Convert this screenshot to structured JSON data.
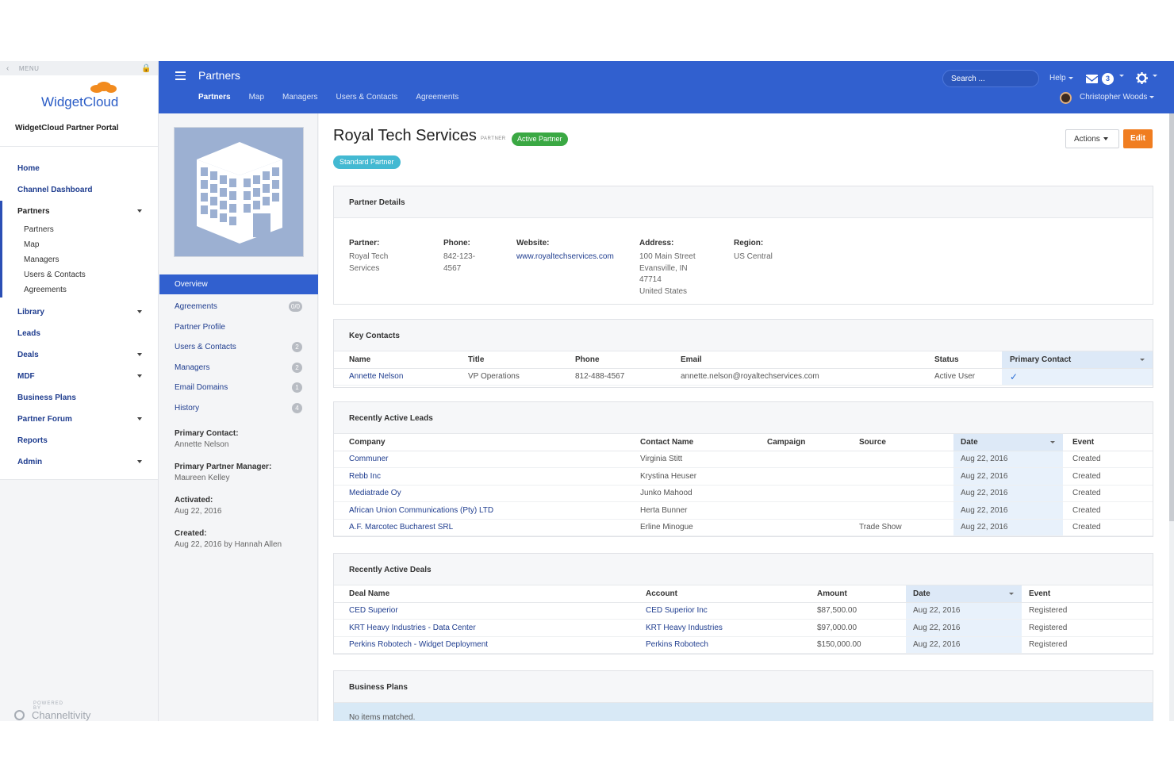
{
  "menu": {
    "label": "MENU"
  },
  "brand": {
    "logo": "WidgetCloud",
    "portal": "WidgetCloud Partner Portal"
  },
  "nav": {
    "home": "Home",
    "dashboard": "Channel Dashboard",
    "partners": "Partners",
    "partners_sub": [
      "Partners",
      "Map",
      "Managers",
      "Users & Contacts",
      "Agreements"
    ],
    "library": "Library",
    "leads": "Leads",
    "deals": "Deals",
    "mdf": "MDF",
    "business_plans": "Business Plans",
    "partner_forum": "Partner Forum",
    "reports": "Reports",
    "admin": "Admin"
  },
  "powered": {
    "label": "POWERED BY",
    "name": "Channeltivity"
  },
  "header": {
    "title": "Partners",
    "tabs": [
      "Partners",
      "Map",
      "Managers",
      "Users & Contacts",
      "Agreements"
    ],
    "search": "Search ...",
    "help": "Help",
    "mail_count": "3",
    "user": "Christopher Woods"
  },
  "side": {
    "overview": "Overview",
    "items": [
      {
        "label": "Agreements",
        "badge": "0/0"
      },
      {
        "label": "Partner Profile",
        "badge": ""
      },
      {
        "label": "Users & Contacts",
        "badge": "2"
      },
      {
        "label": "Managers",
        "badge": "2"
      },
      {
        "label": "Email Domains",
        "badge": "1"
      },
      {
        "label": "History",
        "badge": "4"
      }
    ],
    "info": {
      "primary_contact_label": "Primary Contact:",
      "primary_contact": "Annette Nelson",
      "manager_label": "Primary Partner Manager:",
      "manager": "Maureen Kelley",
      "activated_label": "Activated:",
      "activated": "Aug 22, 2016",
      "created_label": "Created:",
      "created": "Aug 22, 2016 by Hannah Allen"
    }
  },
  "partner": {
    "name": "Royal Tech Services",
    "tag": "PARTNER",
    "status": "Active Partner",
    "tier": "Standard Partner",
    "actions": "Actions",
    "edit": "Edit"
  },
  "details": {
    "title": "Partner Details",
    "partner_label": "Partner:",
    "partner": "Royal Tech Services",
    "phone_label": "Phone:",
    "phone": "842-123-4567",
    "website_label": "Website:",
    "website": "www.royaltechservices.com",
    "address_label": "Address:",
    "address1": "100 Main Street",
    "address2": "Evansville, IN 47714",
    "address3": "United States",
    "region_label": "Region:",
    "region": "US Central"
  },
  "contacts": {
    "title": "Key Contacts",
    "headers": [
      "Name",
      "Title",
      "Phone",
      "Email",
      "Status",
      "Primary Contact"
    ],
    "rows": [
      {
        "name": "Annette Nelson",
        "title": "VP Operations",
        "phone": "812-488-4567",
        "email": "annette.nelson@royaltechservices.com",
        "status": "Active User"
      }
    ]
  },
  "leads": {
    "title": "Recently Active Leads",
    "headers": [
      "Company",
      "Contact Name",
      "Campaign",
      "Source",
      "Date",
      "Event"
    ],
    "rows": [
      {
        "company": "Communer",
        "contact": "Virginia Stitt",
        "campaign": "",
        "source": "",
        "date": "Aug 22, 2016",
        "event": "Created"
      },
      {
        "company": "Rebb Inc",
        "contact": "Krystina Heuser",
        "campaign": "",
        "source": "",
        "date": "Aug 22, 2016",
        "event": "Created"
      },
      {
        "company": "Mediatrade Oy",
        "contact": "Junko Mahood",
        "campaign": "",
        "source": "",
        "date": "Aug 22, 2016",
        "event": "Created"
      },
      {
        "company": "African Union Communications (Pty) LTD",
        "contact": "Herta Bunner",
        "campaign": "",
        "source": "",
        "date": "Aug 22, 2016",
        "event": "Created"
      },
      {
        "company": "A.F. Marcotec Bucharest SRL",
        "contact": "Erline Minogue",
        "campaign": "",
        "source": "Trade Show",
        "date": "Aug 22, 2016",
        "event": "Created"
      }
    ]
  },
  "deals": {
    "title": "Recently Active Deals",
    "headers": [
      "Deal Name",
      "Account",
      "Amount",
      "Date",
      "Event"
    ],
    "rows": [
      {
        "name": "CED Superior",
        "account": "CED Superior Inc",
        "amount": "$87,500.00",
        "date": "Aug 22, 2016",
        "event": "Registered"
      },
      {
        "name": "KRT Heavy Industries - Data Center",
        "account": "KRT Heavy Industries",
        "amount": "$97,000.00",
        "date": "Aug 22, 2016",
        "event": "Registered"
      },
      {
        "name": "Perkins Robotech - Widget Deployment",
        "account": "Perkins Robotech",
        "amount": "$150,000.00",
        "date": "Aug 22, 2016",
        "event": "Registered"
      }
    ]
  },
  "plans": {
    "title": "Business Plans",
    "empty": "No items matched."
  }
}
